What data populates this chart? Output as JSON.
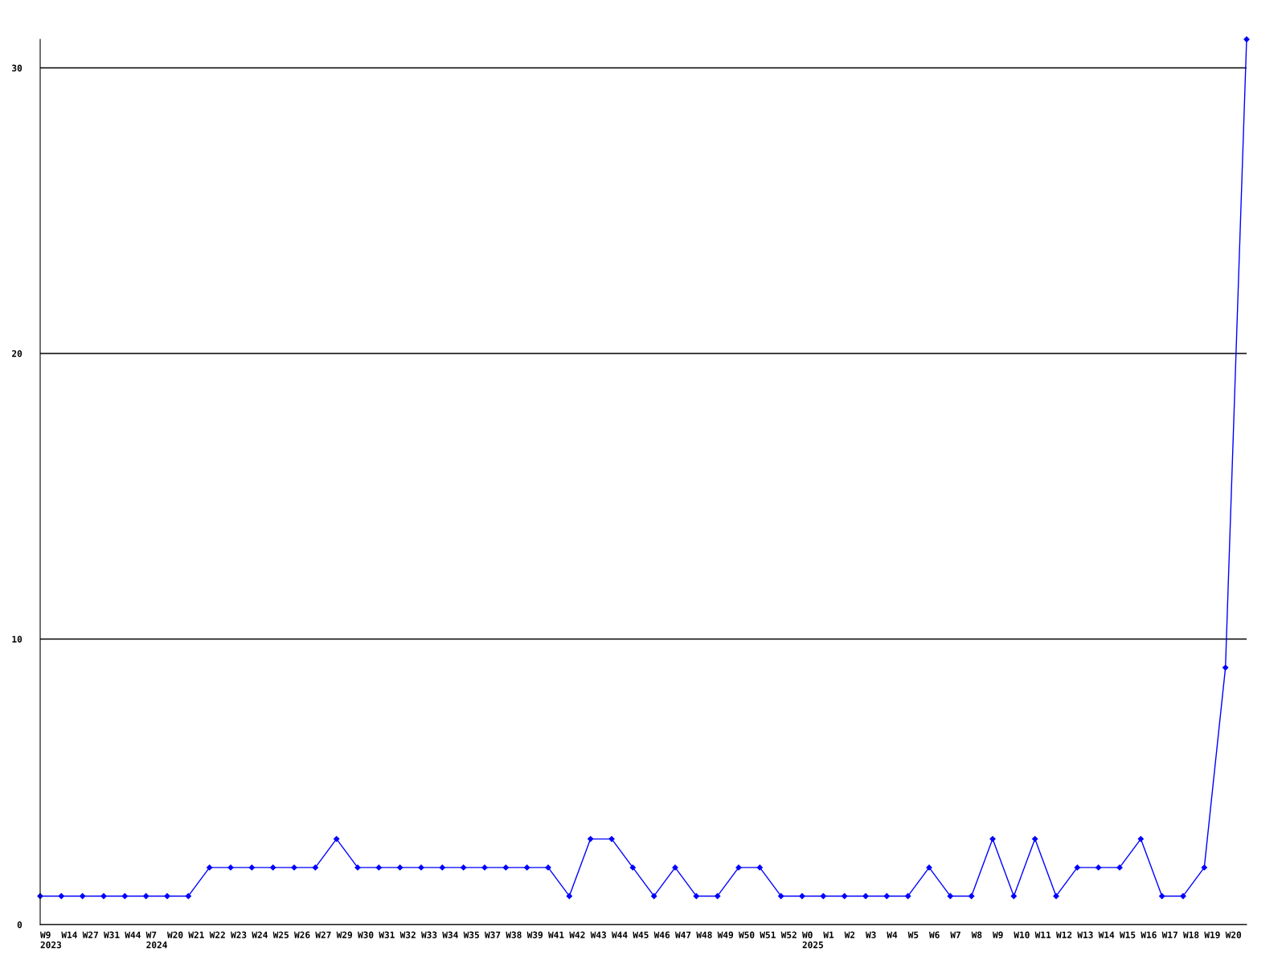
{
  "chart_data": {
    "type": "line",
    "categories": [
      "W9\n2023",
      "W14",
      "W27",
      "W31",
      "W44",
      "W7\n2024",
      "W20",
      "W21",
      "W22",
      "W23",
      "W24",
      "W25",
      "W26",
      "W27",
      "W29",
      "W30",
      "W31",
      "W32",
      "W33",
      "W34",
      "W35",
      "W37",
      "W38",
      "W39",
      "W41",
      "W42",
      "W43",
      "W44",
      "W45",
      "W46",
      "W47",
      "W48",
      "W49",
      "W50",
      "W51",
      "W52",
      "W0\n2025",
      "W1",
      "W2",
      "W3",
      "W4",
      "W5",
      "W6",
      "W7",
      "W8",
      "W9",
      "W10",
      "W11",
      "W12",
      "W13",
      "W14",
      "W15",
      "W16",
      "W17",
      "W18",
      "W19",
      "W20",
      null
    ],
    "values": [
      1,
      1,
      1,
      1,
      1,
      1,
      1,
      1,
      2,
      2,
      2,
      2,
      2,
      2,
      3,
      2,
      2,
      2,
      2,
      2,
      2,
      2,
      2,
      2,
      2,
      1,
      3,
      3,
      2,
      1,
      2,
      1,
      1,
      2,
      2,
      1,
      1,
      1,
      1,
      1,
      1,
      1,
      2,
      1,
      1,
      3,
      1,
      3,
      1,
      2,
      2,
      2,
      3,
      1,
      1,
      2,
      9,
      31
    ],
    "color": "#0000ff",
    "ylim": [
      0,
      31
    ],
    "yticks": [
      0,
      10,
      20,
      30
    ],
    "grid": "y",
    "marker": "diamond",
    "line_style": "solid"
  }
}
